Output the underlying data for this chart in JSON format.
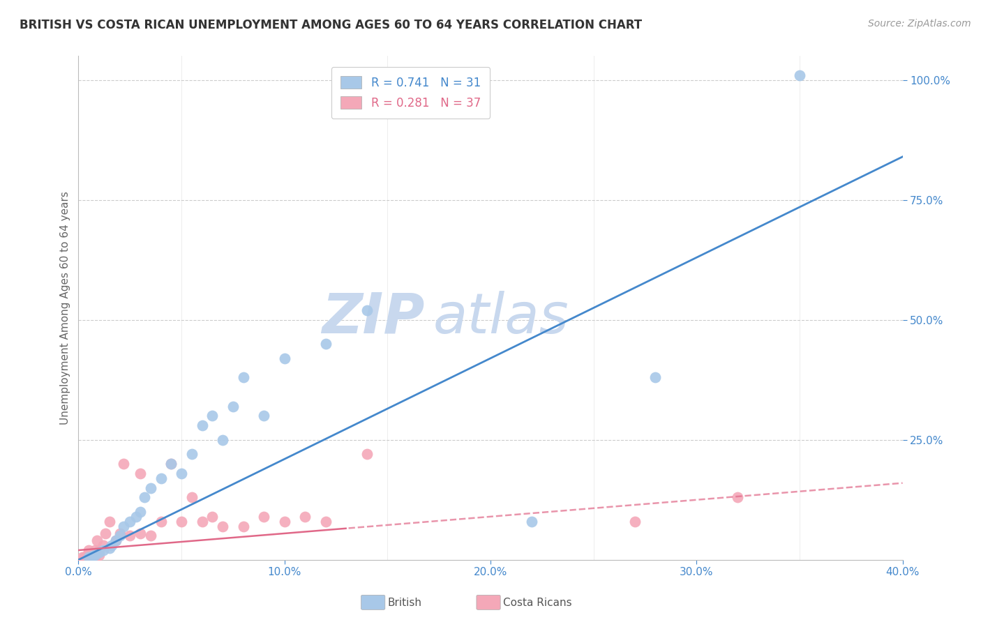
{
  "title": "BRITISH VS COSTA RICAN UNEMPLOYMENT AMONG AGES 60 TO 64 YEARS CORRELATION CHART",
  "source": "Source: ZipAtlas.com",
  "ylabel": "Unemployment Among Ages 60 to 64 years",
  "xlim": [
    0.0,
    0.4
  ],
  "ylim": [
    0.0,
    1.05
  ],
  "xticks": [
    0.0,
    0.1,
    0.2,
    0.3,
    0.4
  ],
  "xticklabels": [
    "0.0%",
    "10.0%",
    "20.0%",
    "30.0%",
    "40.0%"
  ],
  "yticks": [
    0.25,
    0.5,
    0.75,
    1.0
  ],
  "yticklabels": [
    "25.0%",
    "50.0%",
    "75.0%",
    "100.0%"
  ],
  "xminorticks": [
    0.05,
    0.15,
    0.25,
    0.35
  ],
  "british_R": 0.741,
  "british_N": 31,
  "costa_R": 0.281,
  "costa_N": 37,
  "british_color": "#a8c8e8",
  "costa_color": "#f4a8b8",
  "british_line_color": "#4488cc",
  "costa_line_color": "#e06888",
  "axis_color": "#4488cc",
  "grid_color": "#cccccc",
  "watermark_color": "#c8d8ee",
  "background_color": "#ffffff",
  "british_x": [
    0.005,
    0.007,
    0.008,
    0.01,
    0.012,
    0.015,
    0.016,
    0.018,
    0.02,
    0.022,
    0.025,
    0.028,
    0.03,
    0.032,
    0.035,
    0.04,
    0.045,
    0.05,
    0.055,
    0.06,
    0.065,
    0.07,
    0.075,
    0.08,
    0.09,
    0.1,
    0.12,
    0.14,
    0.22,
    0.28,
    0.35
  ],
  "british_y": [
    0.005,
    0.008,
    0.01,
    0.015,
    0.02,
    0.025,
    0.03,
    0.04,
    0.05,
    0.07,
    0.08,
    0.09,
    0.1,
    0.13,
    0.15,
    0.17,
    0.2,
    0.18,
    0.22,
    0.28,
    0.3,
    0.25,
    0.32,
    0.38,
    0.3,
    0.42,
    0.45,
    0.52,
    0.08,
    0.38,
    1.01
  ],
  "costa_x": [
    0.002,
    0.003,
    0.004,
    0.005,
    0.005,
    0.006,
    0.007,
    0.008,
    0.008,
    0.009,
    0.01,
    0.01,
    0.012,
    0.013,
    0.015,
    0.018,
    0.02,
    0.022,
    0.025,
    0.03,
    0.03,
    0.035,
    0.04,
    0.045,
    0.05,
    0.055,
    0.06,
    0.065,
    0.07,
    0.08,
    0.09,
    0.1,
    0.11,
    0.12,
    0.14,
    0.27,
    0.32
  ],
  "costa_y": [
    0.005,
    0.005,
    0.008,
    0.01,
    0.02,
    0.01,
    0.01,
    0.02,
    0.005,
    0.04,
    0.01,
    0.02,
    0.03,
    0.055,
    0.08,
    0.04,
    0.055,
    0.2,
    0.05,
    0.055,
    0.18,
    0.05,
    0.08,
    0.2,
    0.08,
    0.13,
    0.08,
    0.09,
    0.07,
    0.07,
    0.09,
    0.08,
    0.09,
    0.08,
    0.22,
    0.08,
    0.13
  ],
  "british_line_intercept": 0.0,
  "british_line_slope": 2.1,
  "costa_line_intercept": 0.02,
  "costa_line_slope": 0.35,
  "costa_dash_split": 0.13
}
